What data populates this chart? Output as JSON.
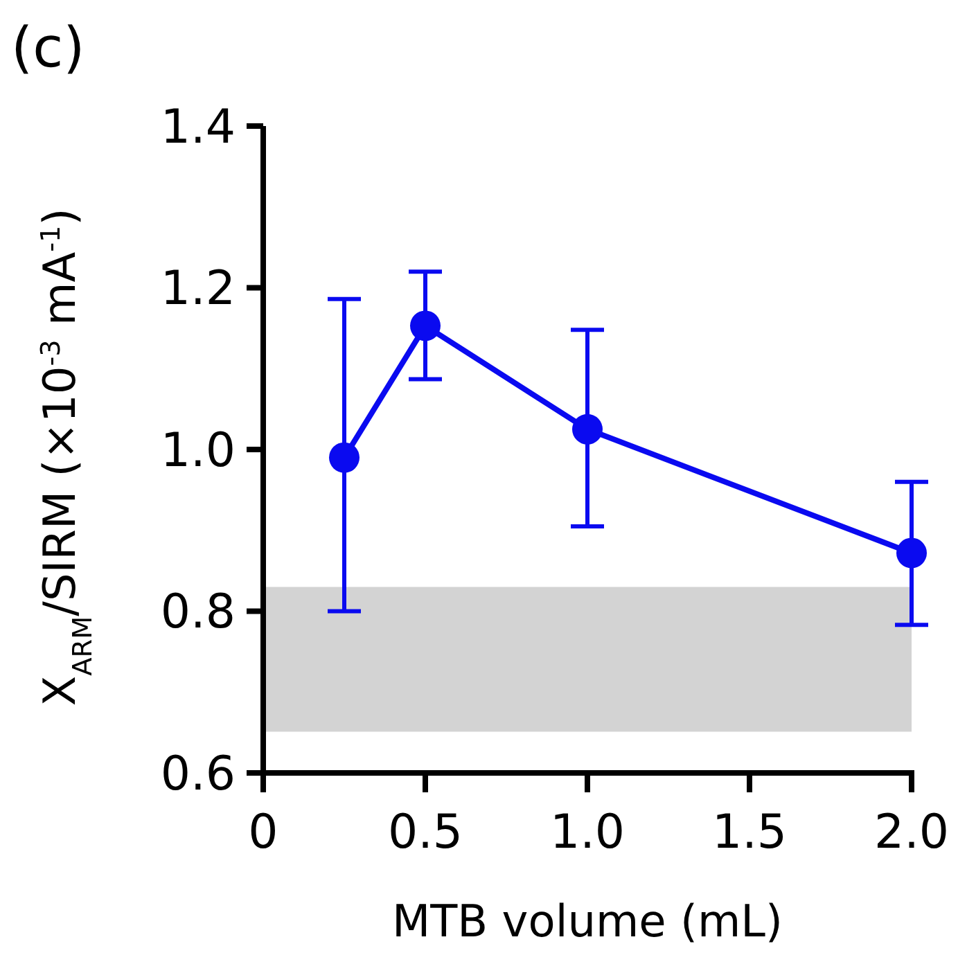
{
  "chart_data": {
    "type": "line",
    "title": "(c)",
    "xlabel": "MTB volume (mL)",
    "ylabel": "X$_{ARM}$/SIRM (×10$^{-3}$ mA$^{-1}$)",
    "x": [
      0.25,
      0.5,
      1.0,
      2.0
    ],
    "series": [
      {
        "color": "#0a0af0",
        "values": [
          0.99,
          1.153,
          1.025,
          0.872
        ],
        "errors": [
          [
            0.8,
            1.186
          ],
          [
            1.087,
            1.22
          ],
          [
            0.905,
            1.148
          ],
          [
            0.783,
            0.96
          ]
        ]
      }
    ],
    "xlim": [
      0,
      2.0
    ],
    "xticks": [
      0,
      0.5,
      {
        "value": 1.0,
        "label": "1.0"
      },
      {
        "value": 1.5,
        "label": "1.5"
      },
      {
        "value": 2.0,
        "label": "2.0"
      }
    ],
    "ylim": [
      0.6,
      1.4
    ],
    "yticks": [
      {
        "value": 0.6,
        "label": "0.6"
      },
      {
        "value": 0.8,
        "label": "0.8"
      },
      {
        "value": 1.0,
        "label": "1.0"
      },
      {
        "value": 1.2,
        "label": "1.2"
      },
      {
        "value": 1.4,
        "label": "1.4"
      }
    ],
    "bands": [
      {
        "axis": "y",
        "from": 0.651,
        "to": 0.83,
        "color": "#d3d3d3"
      }
    ],
    "marker": "circle",
    "line_style": "solid"
  }
}
